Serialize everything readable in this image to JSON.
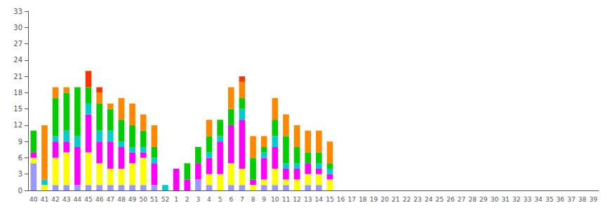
{
  "chart_data": {
    "type": "bar",
    "stacked": true,
    "grid": false,
    "categories": [
      "40",
      "41",
      "42",
      "43",
      "44",
      "45",
      "46",
      "47",
      "48",
      "49",
      "50",
      "51",
      "52",
      "1",
      "2",
      "3",
      "4",
      "5",
      "6",
      "7",
      "8",
      "9",
      "10",
      "11",
      "12",
      "13",
      "14",
      "15",
      "16",
      "17",
      "18",
      "19",
      "20",
      "21",
      "22",
      "23",
      "24",
      "25",
      "26",
      "27",
      "28",
      "29",
      "30",
      "31",
      "32",
      "33",
      "34",
      "35",
      "36",
      "37",
      "38",
      "39"
    ],
    "series": [
      {
        "color": "#9999ff",
        "values": [
          5,
          0,
          1,
          1,
          1,
          1,
          1,
          1,
          1,
          1,
          1,
          1,
          0,
          0,
          0,
          2,
          1,
          0,
          1,
          1,
          0,
          1,
          1,
          1,
          0,
          1,
          1,
          0,
          0,
          0,
          0,
          0,
          0,
          0,
          0,
          0,
          0,
          0,
          0,
          0,
          0,
          0,
          0,
          0,
          0,
          0,
          0,
          0,
          0,
          0,
          0,
          0
        ]
      },
      {
        "color": "#ffff00",
        "values": [
          1,
          1,
          5,
          6,
          0,
          6,
          4,
          3,
          3,
          4,
          5,
          0,
          0,
          0,
          0,
          0,
          2,
          3,
          4,
          3,
          1,
          1,
          3,
          1,
          2,
          2,
          2,
          2,
          0,
          0,
          0,
          0,
          0,
          0,
          0,
          0,
          0,
          0,
          0,
          0,
          0,
          0,
          0,
          0,
          0,
          0,
          0,
          0,
          0,
          0,
          0,
          0
        ]
      },
      {
        "color": "#ff00ff",
        "values": [
          1,
          0,
          3,
          2,
          7,
          7,
          4,
          5,
          4,
          2,
          1,
          4,
          0,
          4,
          2,
          3,
          3,
          6,
          7,
          9,
          1,
          4,
          4,
          2,
          2,
          2,
          1,
          1,
          0,
          0,
          0,
          0,
          0,
          0,
          0,
          0,
          0,
          0,
          0,
          0,
          0,
          0,
          0,
          0,
          0,
          0,
          0,
          0,
          0,
          0,
          0,
          0
        ]
      },
      {
        "color": "#00cccc",
        "values": [
          0,
          1,
          1,
          2,
          2,
          2,
          2,
          2,
          1,
          1,
          1,
          1,
          1,
          0,
          0,
          0,
          1,
          1,
          0,
          2,
          0,
          1,
          2,
          1,
          1,
          0,
          1,
          1,
          0,
          0,
          0,
          0,
          0,
          0,
          0,
          0,
          0,
          0,
          0,
          0,
          0,
          0,
          0,
          0,
          0,
          0,
          0,
          0,
          0,
          0,
          0,
          0
        ]
      },
      {
        "color": "#00cc00",
        "values": [
          4,
          0,
          7,
          7,
          9,
          3,
          5,
          4,
          4,
          4,
          3,
          2,
          0,
          0,
          3,
          3,
          3,
          3,
          3,
          2,
          4,
          1,
          3,
          5,
          3,
          2,
          2,
          1,
          0,
          0,
          0,
          0,
          0,
          0,
          0,
          0,
          0,
          0,
          0,
          0,
          0,
          0,
          0,
          0,
          0,
          0,
          0,
          0,
          0,
          0,
          0,
          0
        ]
      },
      {
        "color": "#ff8800",
        "values": [
          0,
          10,
          2,
          1,
          0,
          0,
          2,
          1,
          4,
          4,
          3,
          4,
          0,
          0,
          0,
          0,
          3,
          0,
          4,
          3,
          4,
          2,
          4,
          4,
          4,
          4,
          4,
          4,
          0,
          0,
          0,
          0,
          0,
          0,
          0,
          0,
          0,
          0,
          0,
          0,
          0,
          0,
          0,
          0,
          0,
          0,
          0,
          0,
          0,
          0,
          0,
          0
        ]
      },
      {
        "color": "#ff3300",
        "values": [
          0,
          0,
          0,
          0,
          0,
          3,
          1,
          0,
          0,
          0,
          0,
          0,
          0,
          0,
          0,
          0,
          0,
          0,
          0,
          1,
          0,
          0,
          0,
          0,
          0,
          0,
          0,
          0,
          0,
          0,
          0,
          0,
          0,
          0,
          0,
          0,
          0,
          0,
          0,
          0,
          0,
          0,
          0,
          0,
          0,
          0,
          0,
          0,
          0,
          0,
          0,
          0
        ]
      }
    ],
    "ylim": [
      0,
      33
    ],
    "yticks": [
      0,
      3,
      6,
      9,
      12,
      15,
      18,
      21,
      24,
      27,
      30,
      33
    ]
  }
}
